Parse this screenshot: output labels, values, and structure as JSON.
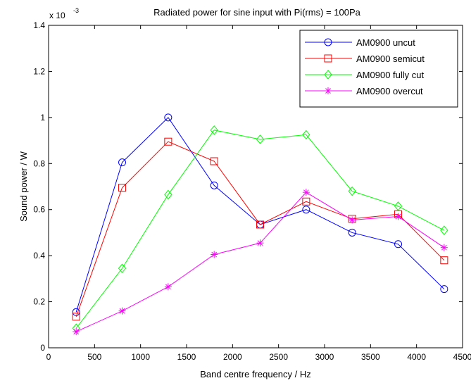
{
  "chart_data": {
    "type": "line",
    "title": "Radiated power for sine input with Pi(rms) = 100Pa",
    "xlabel": "Band centre frequency / Hz",
    "ylabel": "Sound power / W",
    "scale_label": "x 10",
    "scale_exponent": "-3",
    "xlim": [
      0,
      4500
    ],
    "ylim": [
      0,
      1.4
    ],
    "x_ticks": [
      0,
      500,
      1000,
      1500,
      2000,
      2500,
      3000,
      3500,
      4000,
      4500
    ],
    "y_ticks": [
      0,
      0.2,
      0.4,
      0.6,
      0.8,
      1,
      1.2,
      1.4
    ],
    "x_tick_labels": [
      "0",
      "500",
      "1000",
      "1500",
      "2000",
      "2500",
      "3000",
      "3500",
      "4000",
      "4500"
    ],
    "y_tick_labels": [
      "0",
      "0.2",
      "0.4",
      "0.6",
      "0.8",
      "1",
      "1.2",
      "1.4"
    ],
    "grid": false,
    "legend_position": "top-right",
    "x": [
      300,
      800,
      1300,
      1800,
      2300,
      2800,
      3300,
      3800,
      4300
    ],
    "series": [
      {
        "name": "AM0900 uncut",
        "color": "#0000ff",
        "marker": "circle",
        "values": [
          0.155,
          0.805,
          1.0,
          0.705,
          0.535,
          0.6,
          0.5,
          0.45,
          0.255
        ]
      },
      {
        "name": "AM0900 semicut",
        "color": "#ff0000",
        "marker": "square",
        "values": [
          0.135,
          0.695,
          0.895,
          0.81,
          0.535,
          0.635,
          0.56,
          0.58,
          0.38
        ]
      },
      {
        "name": "AM0900 fully cut",
        "color": "#00ff00",
        "marker": "diamond",
        "values": [
          0.085,
          0.345,
          0.665,
          0.945,
          0.905,
          0.925,
          0.68,
          0.615,
          0.51
        ]
      },
      {
        "name": "AM0900 overcut",
        "color": "#ff00ff",
        "marker": "star",
        "values": [
          0.07,
          0.16,
          0.265,
          0.405,
          0.455,
          0.675,
          0.555,
          0.57,
          0.435
        ]
      }
    ]
  }
}
